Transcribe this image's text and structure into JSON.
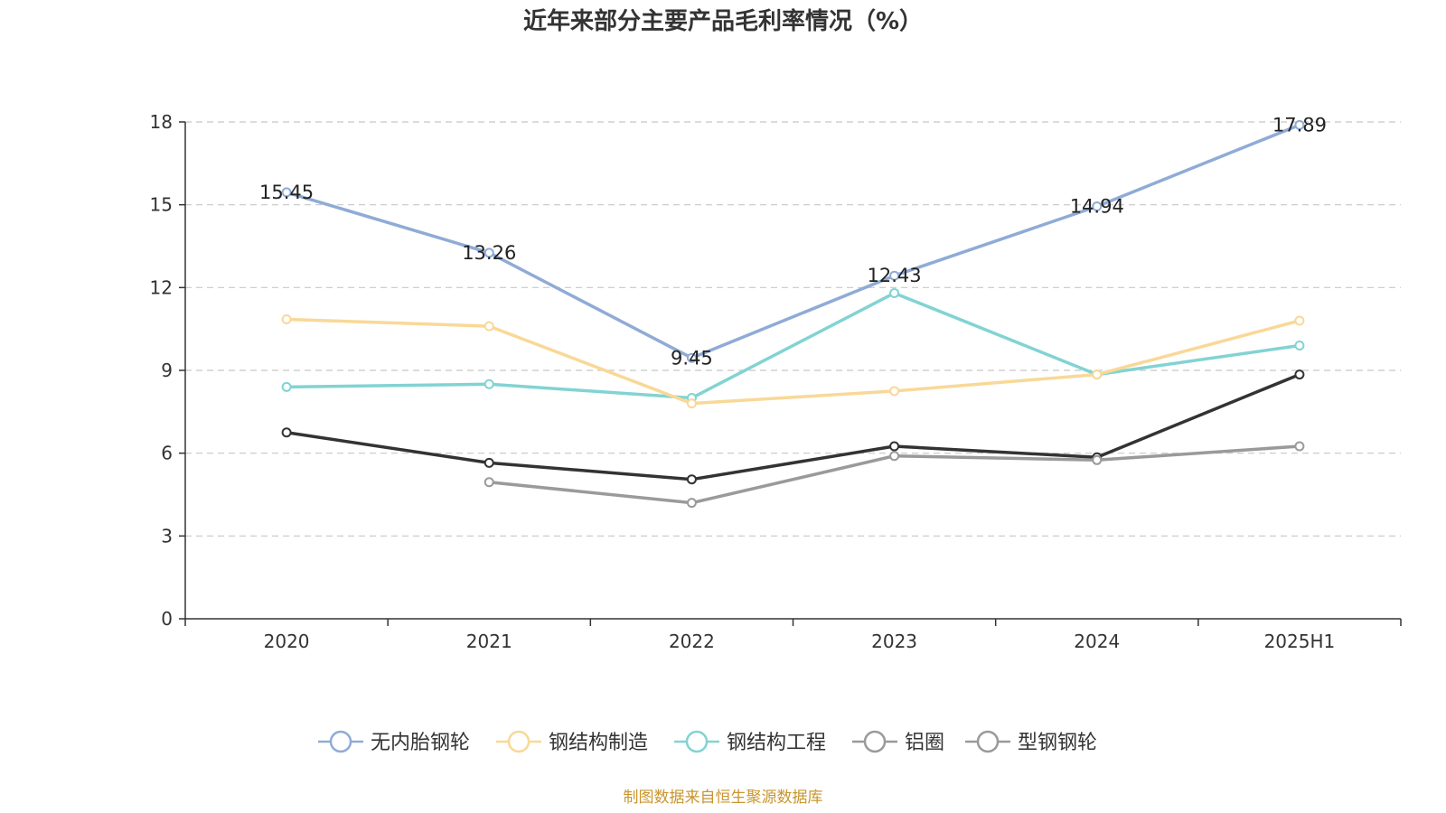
{
  "chart_data": {
    "type": "line",
    "title": "近年来部分主要产品毛利率情况（%）",
    "categories": [
      "2020",
      "2021",
      "2022",
      "2023",
      "2024",
      "2025H1"
    ],
    "ylim": [
      0,
      18
    ],
    "yticks": [
      0,
      3,
      6,
      9,
      12,
      15,
      18
    ],
    "grid": true,
    "legend_position": "bottom",
    "series": [
      {
        "name": "无内胎钢轮",
        "color": "#8fabd6",
        "values": [
          15.45,
          13.26,
          9.45,
          12.43,
          14.94,
          17.89
        ],
        "show_labels": true
      },
      {
        "name": "钢结构制造",
        "color": "#f9d897",
        "values": [
          10.85,
          10.6,
          7.8,
          8.25,
          8.85,
          10.8
        ],
        "show_labels": false
      },
      {
        "name": "钢结构工程",
        "color": "#82d3d3",
        "values": [
          8.4,
          8.5,
          8.0,
          11.8,
          8.85,
          9.9
        ],
        "show_labels": false
      },
      {
        "name": "铝圈",
        "color": "#9a9a9a",
        "values": [
          null,
          4.95,
          4.2,
          5.9,
          5.75,
          6.25
        ],
        "show_labels": false
      },
      {
        "name": "型钢钢轮",
        "color": "#333333",
        "values": [
          6.75,
          5.65,
          5.05,
          6.25,
          5.85,
          8.85
        ],
        "show_labels": false
      }
    ],
    "legend": [
      {
        "name": "无内胎钢轮",
        "color": "#8fabd6"
      },
      {
        "name": "钢结构制造",
        "color": "#f9d897"
      },
      {
        "name": "钢结构工程",
        "color": "#82d3d3"
      },
      {
        "name": "铝圈",
        "color": "#9a9a9a"
      },
      {
        "name": "型钢钢轮",
        "color": "#9a9a9a"
      }
    ]
  },
  "source": "制图数据来自恒生聚源数据库"
}
